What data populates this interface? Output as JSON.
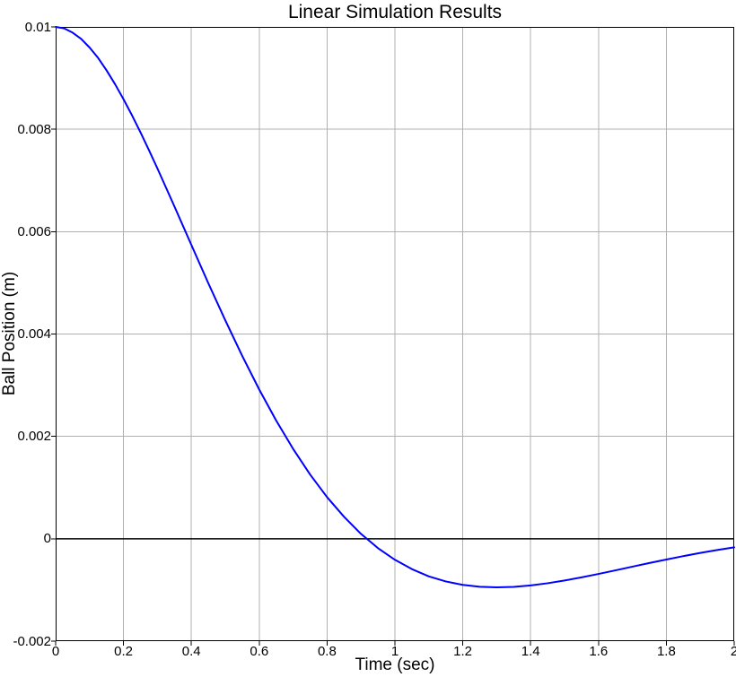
{
  "chart_data": {
    "type": "line",
    "title": "Linear Simulation Results",
    "xlabel": "Time (sec)",
    "ylabel": "Ball Position (m)",
    "xlim": [
      0,
      2
    ],
    "ylim": [
      -0.002,
      0.01
    ],
    "x_ticks": {
      "values": [
        0,
        0.2,
        0.4,
        0.6,
        0.8,
        1,
        1.2,
        1.4,
        1.6,
        1.8,
        2
      ],
      "labels": [
        "0",
        "0.2",
        "0.4",
        "0.6",
        "0.8",
        "1",
        "1.2",
        "1.4",
        "1.6",
        "1.8",
        "2"
      ]
    },
    "y_ticks": {
      "values": [
        -0.002,
        0,
        0.002,
        0.004,
        0.006,
        0.008,
        0.01
      ],
      "labels": [
        "-0.002",
        "0",
        "0.002",
        "0.004",
        "0.006",
        "0.008",
        "0.01"
      ]
    },
    "grid": true,
    "legend_position": "none",
    "zero_reference_line": 0,
    "series": [
      {
        "name": "Ball Position",
        "color": "#0000ff",
        "line_width": 2,
        "x": [
          0,
          0.025,
          0.05,
          0.075,
          0.1,
          0.125,
          0.15,
          0.175,
          0.2,
          0.225,
          0.25,
          0.275,
          0.3,
          0.35,
          0.4,
          0.45,
          0.5,
          0.55,
          0.6,
          0.65,
          0.7,
          0.75,
          0.8,
          0.85,
          0.9,
          0.95,
          1,
          1.05,
          1.1,
          1.15,
          1.2,
          1.25,
          1.3,
          1.35,
          1.4,
          1.45,
          1.5,
          1.55,
          1.6,
          1.65,
          1.7,
          1.75,
          1.8,
          1.85,
          1.9,
          1.95,
          2
        ],
        "y": [
          0.01,
          0.009972,
          0.009888,
          0.009766,
          0.009597,
          0.009395,
          0.009151,
          0.008882,
          0.008588,
          0.008273,
          0.00794,
          0.007593,
          0.007234,
          0.006494,
          0.005741,
          0.004992,
          0.004268,
          0.003572,
          0.002916,
          0.002309,
          0.001755,
          0.001255,
          0.000813,
          0.00043,
          9.5e-05,
          -0.000183,
          -0.000411,
          -0.000593,
          -0.000735,
          -0.000834,
          -0.000901,
          -0.000938,
          -0.00095,
          -0.00094,
          -0.000911,
          -0.000869,
          -0.000816,
          -0.000754,
          -0.000687,
          -0.000617,
          -0.000545,
          -0.000474,
          -0.000406,
          -0.000339,
          -0.000277,
          -0.000219,
          -0.000167
        ]
      }
    ],
    "colors": {
      "line": "#0000ff",
      "grid": "#b0b0b0",
      "axis_box": "#000000",
      "zero_line": "#000000",
      "background": "#ffffff",
      "text": "#000000"
    }
  }
}
